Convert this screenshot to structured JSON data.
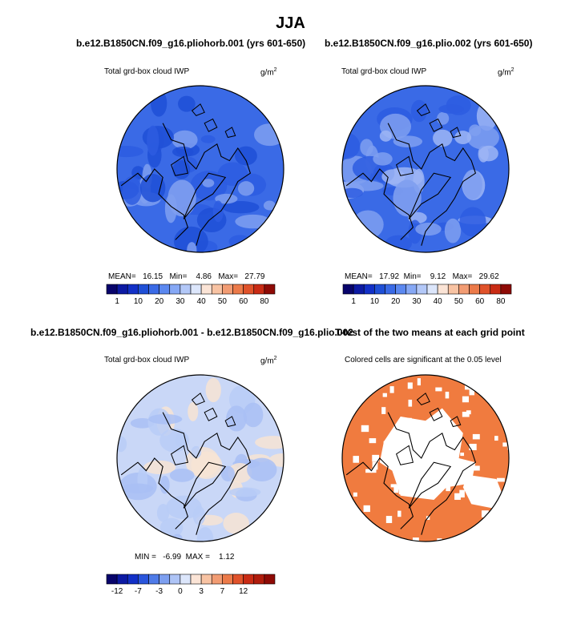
{
  "figure": {
    "title": "JJA",
    "panels": [
      {
        "id": "p1",
        "title": "b.e12.B1850CN.f09_g16.pliohorb.001 (yrs 601-650)",
        "left_label": "Total grd-box cloud IWP",
        "units": "g/m",
        "units_sup": "2",
        "stats": {
          "mean_label": "MEAN=",
          "mean": "16.15",
          "min_label": "Min=",
          "min": "4.86",
          "max_label": "Max=",
          "max": "27.79"
        }
      },
      {
        "id": "p2",
        "title": "b.e12.B1850CN.f09_g16.plio.002 (yrs 601-650)",
        "left_label": "Total grd-box cloud IWP",
        "units": "g/m",
        "units_sup": "2",
        "stats": {
          "mean_label": "MEAN=",
          "mean": "17.92",
          "min_label": "Min=",
          "min": "9.12",
          "max_label": "Max=",
          "max": "29.62"
        }
      },
      {
        "id": "p3",
        "title": "b.e12.B1850CN.f09_g16.pliohorb.001 - b.e12.B1850CN.f09_g16.plio.002",
        "left_label": "Total grd-box cloud IWP",
        "units": "g/m",
        "units_sup": "2",
        "stats_text": "MIN =   -6.99  MAX =    1.12"
      },
      {
        "id": "p4",
        "title": "T-test of the two means at each grid point",
        "center_label": "Colored cells are significant at the 0.05 level"
      }
    ]
  },
  "colors": {
    "map_blue_dark": "#1f4fd6",
    "map_blue_mid": "#3a6ae6",
    "map_blue_light": "#7f9ff0",
    "diff_light": "#c9d7f7",
    "ttest_fill": "#f07b3f"
  },
  "chart_data": [
    {
      "type": "heatmap",
      "title": "b.e12.B1850CN.f09_g16.pliohorb.001 (yrs 601-650)",
      "variable": "Total grd-box cloud IWP",
      "units": "g/m2",
      "projection": "polar stereographic (north)",
      "mean": 16.15,
      "min": 4.86,
      "max": 27.79,
      "colorbar": {
        "colors": [
          "#08046b",
          "#0c1aa3",
          "#1230c7",
          "#1f4fd6",
          "#3a6ae6",
          "#5b88f0",
          "#86a8f5",
          "#b3c8f8",
          "#dce6fb",
          "#fbe4d6",
          "#f8c3a3",
          "#f29c73",
          "#ec7a49",
          "#e0522a",
          "#c92b14",
          "#8e0a05"
        ],
        "tick_labels": [
          "1",
          "10",
          "20",
          "30",
          "40",
          "50",
          "60",
          "80"
        ]
      }
    },
    {
      "type": "heatmap",
      "title": "b.e12.B1850CN.f09_g16.plio.002 (yrs 601-650)",
      "variable": "Total grd-box cloud IWP",
      "units": "g/m2",
      "projection": "polar stereographic (north)",
      "mean": 17.92,
      "min": 9.12,
      "max": 29.62,
      "colorbar": {
        "colors": [
          "#08046b",
          "#0c1aa3",
          "#1230c7",
          "#1f4fd6",
          "#3a6ae6",
          "#5b88f0",
          "#86a8f5",
          "#b3c8f8",
          "#dce6fb",
          "#fbe4d6",
          "#f8c3a3",
          "#f29c73",
          "#ec7a49",
          "#e0522a",
          "#c92b14",
          "#8e0a05"
        ],
        "tick_labels": [
          "1",
          "10",
          "20",
          "30",
          "40",
          "50",
          "60",
          "80"
        ]
      }
    },
    {
      "type": "heatmap",
      "title": "b.e12.B1850CN.f09_g16.pliohorb.001 - b.e12.B1850CN.f09_g16.plio.002",
      "variable": "Total grd-box cloud IWP",
      "units": "g/m2",
      "projection": "polar stereographic (north)",
      "min": -6.99,
      "max": 1.12,
      "colorbar": {
        "colors": [
          "#08046b",
          "#0c1aa3",
          "#1230c7",
          "#2a55dc",
          "#4f7be8",
          "#7d9ff0",
          "#aec4f6",
          "#dce6fb",
          "#fbe4d6",
          "#f8c3a3",
          "#f29c73",
          "#ec7a49",
          "#e0522a",
          "#c92b14",
          "#b01c0c",
          "#8e0a05"
        ],
        "tick_labels": [
          "-12",
          "-7",
          "-3",
          "0",
          "3",
          "7",
          "12"
        ]
      }
    },
    {
      "type": "heatmap",
      "title": "T-test of the two means at each grid point",
      "annotation": "Colored cells are significant at the 0.05 level",
      "projection": "polar stereographic (north)"
    }
  ]
}
